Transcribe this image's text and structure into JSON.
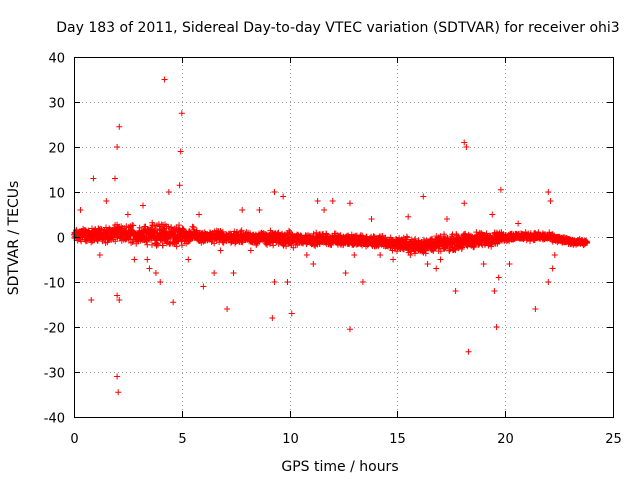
{
  "chart_data": {
    "type": "scatter",
    "title": "Day 183 of 2011, Sidereal Day-to-day VTEC variation (SDTVAR) for receiver ohi3",
    "xlabel": "GPS time / hours",
    "ylabel": "SDTVAR / TECUs",
    "xlim": [
      0,
      25
    ],
    "ylim": [
      -40,
      40
    ],
    "xticks": [
      "0",
      "5",
      "10",
      "15",
      "20",
      "25"
    ],
    "yticks": [
      "40",
      "30",
      "20",
      "10",
      "0",
      "-10",
      "-20",
      "-30",
      "-40"
    ],
    "grid": true,
    "marker": "+",
    "series": [
      {
        "name": "ohi3",
        "color": "#ff0000",
        "band": {
          "x": [
            0,
            1,
            2,
            3,
            4,
            5,
            6,
            7,
            8,
            9,
            10,
            11,
            12,
            13,
            14,
            15,
            16,
            17,
            18,
            19,
            20,
            21,
            22,
            23,
            23.8
          ],
          "center": [
            0.5,
            0.5,
            0.8,
            0.5,
            0.5,
            0.5,
            0,
            0,
            0,
            -0.3,
            -0.5,
            -0.5,
            -0.5,
            -0.8,
            -1,
            -1.5,
            -2,
            -1.5,
            -1,
            -0.5,
            0,
            0.2,
            0,
            -1,
            -1.2
          ],
          "halfwidth": [
            1.5,
            2,
            2,
            2.5,
            3,
            2.5,
            1.5,
            1.5,
            1.5,
            1.8,
            1.8,
            1.5,
            1.5,
            1.5,
            1.5,
            1.8,
            2,
            1.8,
            2,
            2,
            1.2,
            1,
            1,
            0.8,
            0.6
          ]
        },
        "outliers": [
          [
            0.8,
            -14
          ],
          [
            0.9,
            13
          ],
          [
            1.5,
            8
          ],
          [
            1.9,
            13
          ],
          [
            2.0,
            20
          ],
          [
            2.1,
            24.5
          ],
          [
            2.0,
            -13
          ],
          [
            2.1,
            -14
          ],
          [
            2.0,
            -31
          ],
          [
            2.05,
            -34.5
          ],
          [
            3.2,
            7
          ],
          [
            3.4,
            -5
          ],
          [
            3.8,
            -8
          ],
          [
            4.0,
            -10
          ],
          [
            4.2,
            35
          ],
          [
            4.4,
            10
          ],
          [
            4.6,
            -14.5
          ],
          [
            4.9,
            11.5
          ],
          [
            4.95,
            19
          ],
          [
            5.0,
            27.5
          ],
          [
            5.3,
            -5
          ],
          [
            6.0,
            -11
          ],
          [
            6.5,
            -8
          ],
          [
            7.1,
            -16
          ],
          [
            7.4,
            -8
          ],
          [
            7.8,
            6
          ],
          [
            8.6,
            6
          ],
          [
            9.2,
            -18
          ],
          [
            9.3,
            -10
          ],
          [
            9.3,
            10
          ],
          [
            9.7,
            9
          ],
          [
            9.9,
            -10
          ],
          [
            10.1,
            -17
          ],
          [
            11.1,
            -6
          ],
          [
            11.6,
            6
          ],
          [
            12.0,
            8
          ],
          [
            12.6,
            -8
          ],
          [
            12.8,
            7.5
          ],
          [
            13.0,
            -4
          ],
          [
            13.4,
            -10
          ],
          [
            12.8,
            -20.5
          ],
          [
            13.8,
            4
          ],
          [
            15.5,
            4.5
          ],
          [
            15.6,
            -4
          ],
          [
            16.2,
            9
          ],
          [
            16.4,
            -6
          ],
          [
            17.3,
            4
          ],
          [
            17.7,
            -12
          ],
          [
            18.1,
            21
          ],
          [
            18.2,
            20
          ],
          [
            18.3,
            -25.5
          ],
          [
            18.1,
            7.5
          ],
          [
            19.0,
            -6
          ],
          [
            19.5,
            -12
          ],
          [
            19.6,
            -20
          ],
          [
            19.7,
            -9
          ],
          [
            19.8,
            10.5
          ],
          [
            20.2,
            -6
          ],
          [
            21.4,
            -16
          ],
          [
            22.0,
            10
          ],
          [
            22.1,
            8
          ],
          [
            22.0,
            -10
          ],
          [
            22.2,
            -7
          ],
          [
            22.3,
            -4
          ],
          [
            0.3,
            6
          ],
          [
            1.2,
            -4
          ],
          [
            2.5,
            5
          ],
          [
            2.8,
            -5
          ],
          [
            3.5,
            -7
          ],
          [
            5.8,
            5
          ],
          [
            6.8,
            -3
          ],
          [
            8.2,
            -3
          ],
          [
            10.8,
            -4
          ],
          [
            11.3,
            8
          ],
          [
            14.2,
            -4
          ],
          [
            14.8,
            -5
          ],
          [
            16.8,
            -7
          ],
          [
            17.0,
            -5
          ],
          [
            19.4,
            5
          ],
          [
            20.6,
            3
          ]
        ]
      }
    ]
  }
}
